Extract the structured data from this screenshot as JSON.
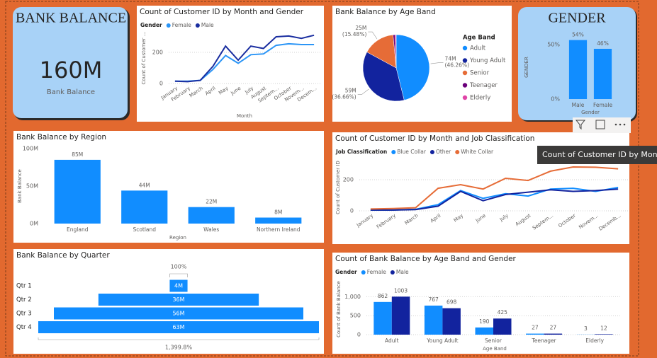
{
  "kpi": {
    "title": "BANK BALANCE",
    "value": "160M",
    "label": "Bank Balance"
  },
  "tooltip": "Count of Customer ID by Mont",
  "chart_data": [
    {
      "type": "line",
      "title": "Count of Customer ID by Month and Gender",
      "legend_title": "Gender",
      "categories": [
        "January",
        "February",
        "March",
        "April",
        "May",
        "June",
        "July",
        "August",
        "Septem...",
        "October",
        "Novem...",
        "Decem..."
      ],
      "series": [
        {
          "name": "Female",
          "color": "#2b95f6",
          "values": [
            15,
            15,
            20,
            90,
            180,
            130,
            185,
            190,
            245,
            255,
            250,
            250
          ]
        },
        {
          "name": "Male",
          "color": "#1a2ea0",
          "values": [
            15,
            12,
            20,
            110,
            240,
            150,
            240,
            225,
            300,
            305,
            290,
            310
          ]
        }
      ],
      "ylim": [
        0,
        330
      ],
      "yticks": [
        0,
        200
      ],
      "x_label": "Month",
      "y_label": "Count of Customer ...",
      "grid": true
    },
    {
      "type": "pie",
      "title": "Bank Balance by Age Band",
      "legend_title": "Age Band",
      "categories": [
        "Adult",
        "Young Adult",
        "Senior",
        "Teenager",
        "Elderly"
      ],
      "values": [
        74,
        59,
        25,
        1.5,
        0.9
      ],
      "value_labels": [
        "74M",
        "59M",
        "25M",
        null,
        null
      ],
      "percent_labels": [
        "(46.26%)",
        "(36.66%)",
        "(15.48%)",
        null,
        null
      ],
      "colors": [
        "#118dff",
        "#12239e",
        "#e66c37",
        "#6b007b",
        "#e044a7"
      ]
    },
    {
      "type": "bar",
      "title": "GENDER",
      "categories": [
        "Male",
        "Female"
      ],
      "values": [
        54,
        46
      ],
      "value_labels": [
        "54%",
        "46%"
      ],
      "color": "#118dff",
      "ylim": [
        0,
        57
      ],
      "yticks": [
        {
          "value": 0,
          "label": "0%"
        },
        {
          "value": 50,
          "label": "50%"
        }
      ],
      "x_label": "Gender",
      "y_label": "GENDER",
      "grid": false
    },
    {
      "type": "bar",
      "title": "Bank Balance by Region",
      "categories": [
        "England",
        "Scotland",
        "Wales",
        "Northern Ireland"
      ],
      "values": [
        85,
        44,
        22,
        8
      ],
      "value_labels": [
        "85M",
        "44M",
        "22M",
        "8M"
      ],
      "color": "#118dff",
      "ylim": [
        0,
        100
      ],
      "yticks": [
        {
          "value": 0,
          "label": "0M"
        },
        {
          "value": 50,
          "label": "50M"
        },
        {
          "value": 100,
          "label": "100M"
        }
      ],
      "x_label": "Region",
      "y_label": "Bank Balance",
      "grid": false
    },
    {
      "type": "line",
      "title": "Count of Customer ID by Month and Job Classification",
      "legend_title": "Job Classification",
      "categories": [
        "January",
        "February",
        "March",
        "April",
        "May",
        "June",
        "July",
        "August",
        "Septem...",
        "October",
        "Novem...",
        "Decemb..."
      ],
      "series": [
        {
          "name": "Blue Collar",
          "color": "#118dff",
          "values": [
            5,
            5,
            10,
            40,
            130,
            80,
            110,
            95,
            140,
            145,
            125,
            150
          ]
        },
        {
          "name": "Other",
          "color": "#12239e",
          "values": [
            5,
            5,
            8,
            30,
            125,
            65,
            105,
            120,
            135,
            125,
            130,
            140
          ]
        },
        {
          "name": "White Collar",
          "color": "#e66c37",
          "values": [
            12,
            15,
            20,
            145,
            168,
            140,
            209,
            195,
            255,
            282,
            280,
            270
          ]
        }
      ],
      "ylim": [
        0,
        300
      ],
      "yticks": [
        0,
        200
      ],
      "y_label": "Count of Customer ID",
      "grid": true
    },
    {
      "type": "funnel",
      "title": "Bank Balance by Quarter",
      "categories": [
        "Qtr 1",
        "Qtr 2",
        "Qtr 3",
        "Qtr 4"
      ],
      "values": [
        4,
        36,
        56,
        63
      ],
      "value_labels": [
        "4M",
        "36M",
        "56M",
        "63M"
      ],
      "color": "#118dff",
      "top_label": "100%",
      "bottom_label": "1,399.8%"
    },
    {
      "type": "grouped_bar",
      "title": "Count of Bank Balance by Age Band and Gender",
      "legend_title": "Gender",
      "categories": [
        "Adult",
        "Young Adult",
        "Senior",
        "Teenager",
        "Elderly"
      ],
      "series": [
        {
          "name": "Female",
          "color": "#118dff",
          "values": [
            862,
            767,
            190,
            27,
            3
          ]
        },
        {
          "name": "Male",
          "color": "#12239e",
          "values": [
            1003,
            698,
            425,
            27,
            12
          ]
        }
      ],
      "ylim": [
        0,
        1400
      ],
      "yticks": [
        0,
        500,
        {
          "value": 1000,
          "label": "1,000"
        }
      ],
      "x_label": "Age Band",
      "y_label": "Count of Bank Balance",
      "grid": true
    }
  ]
}
